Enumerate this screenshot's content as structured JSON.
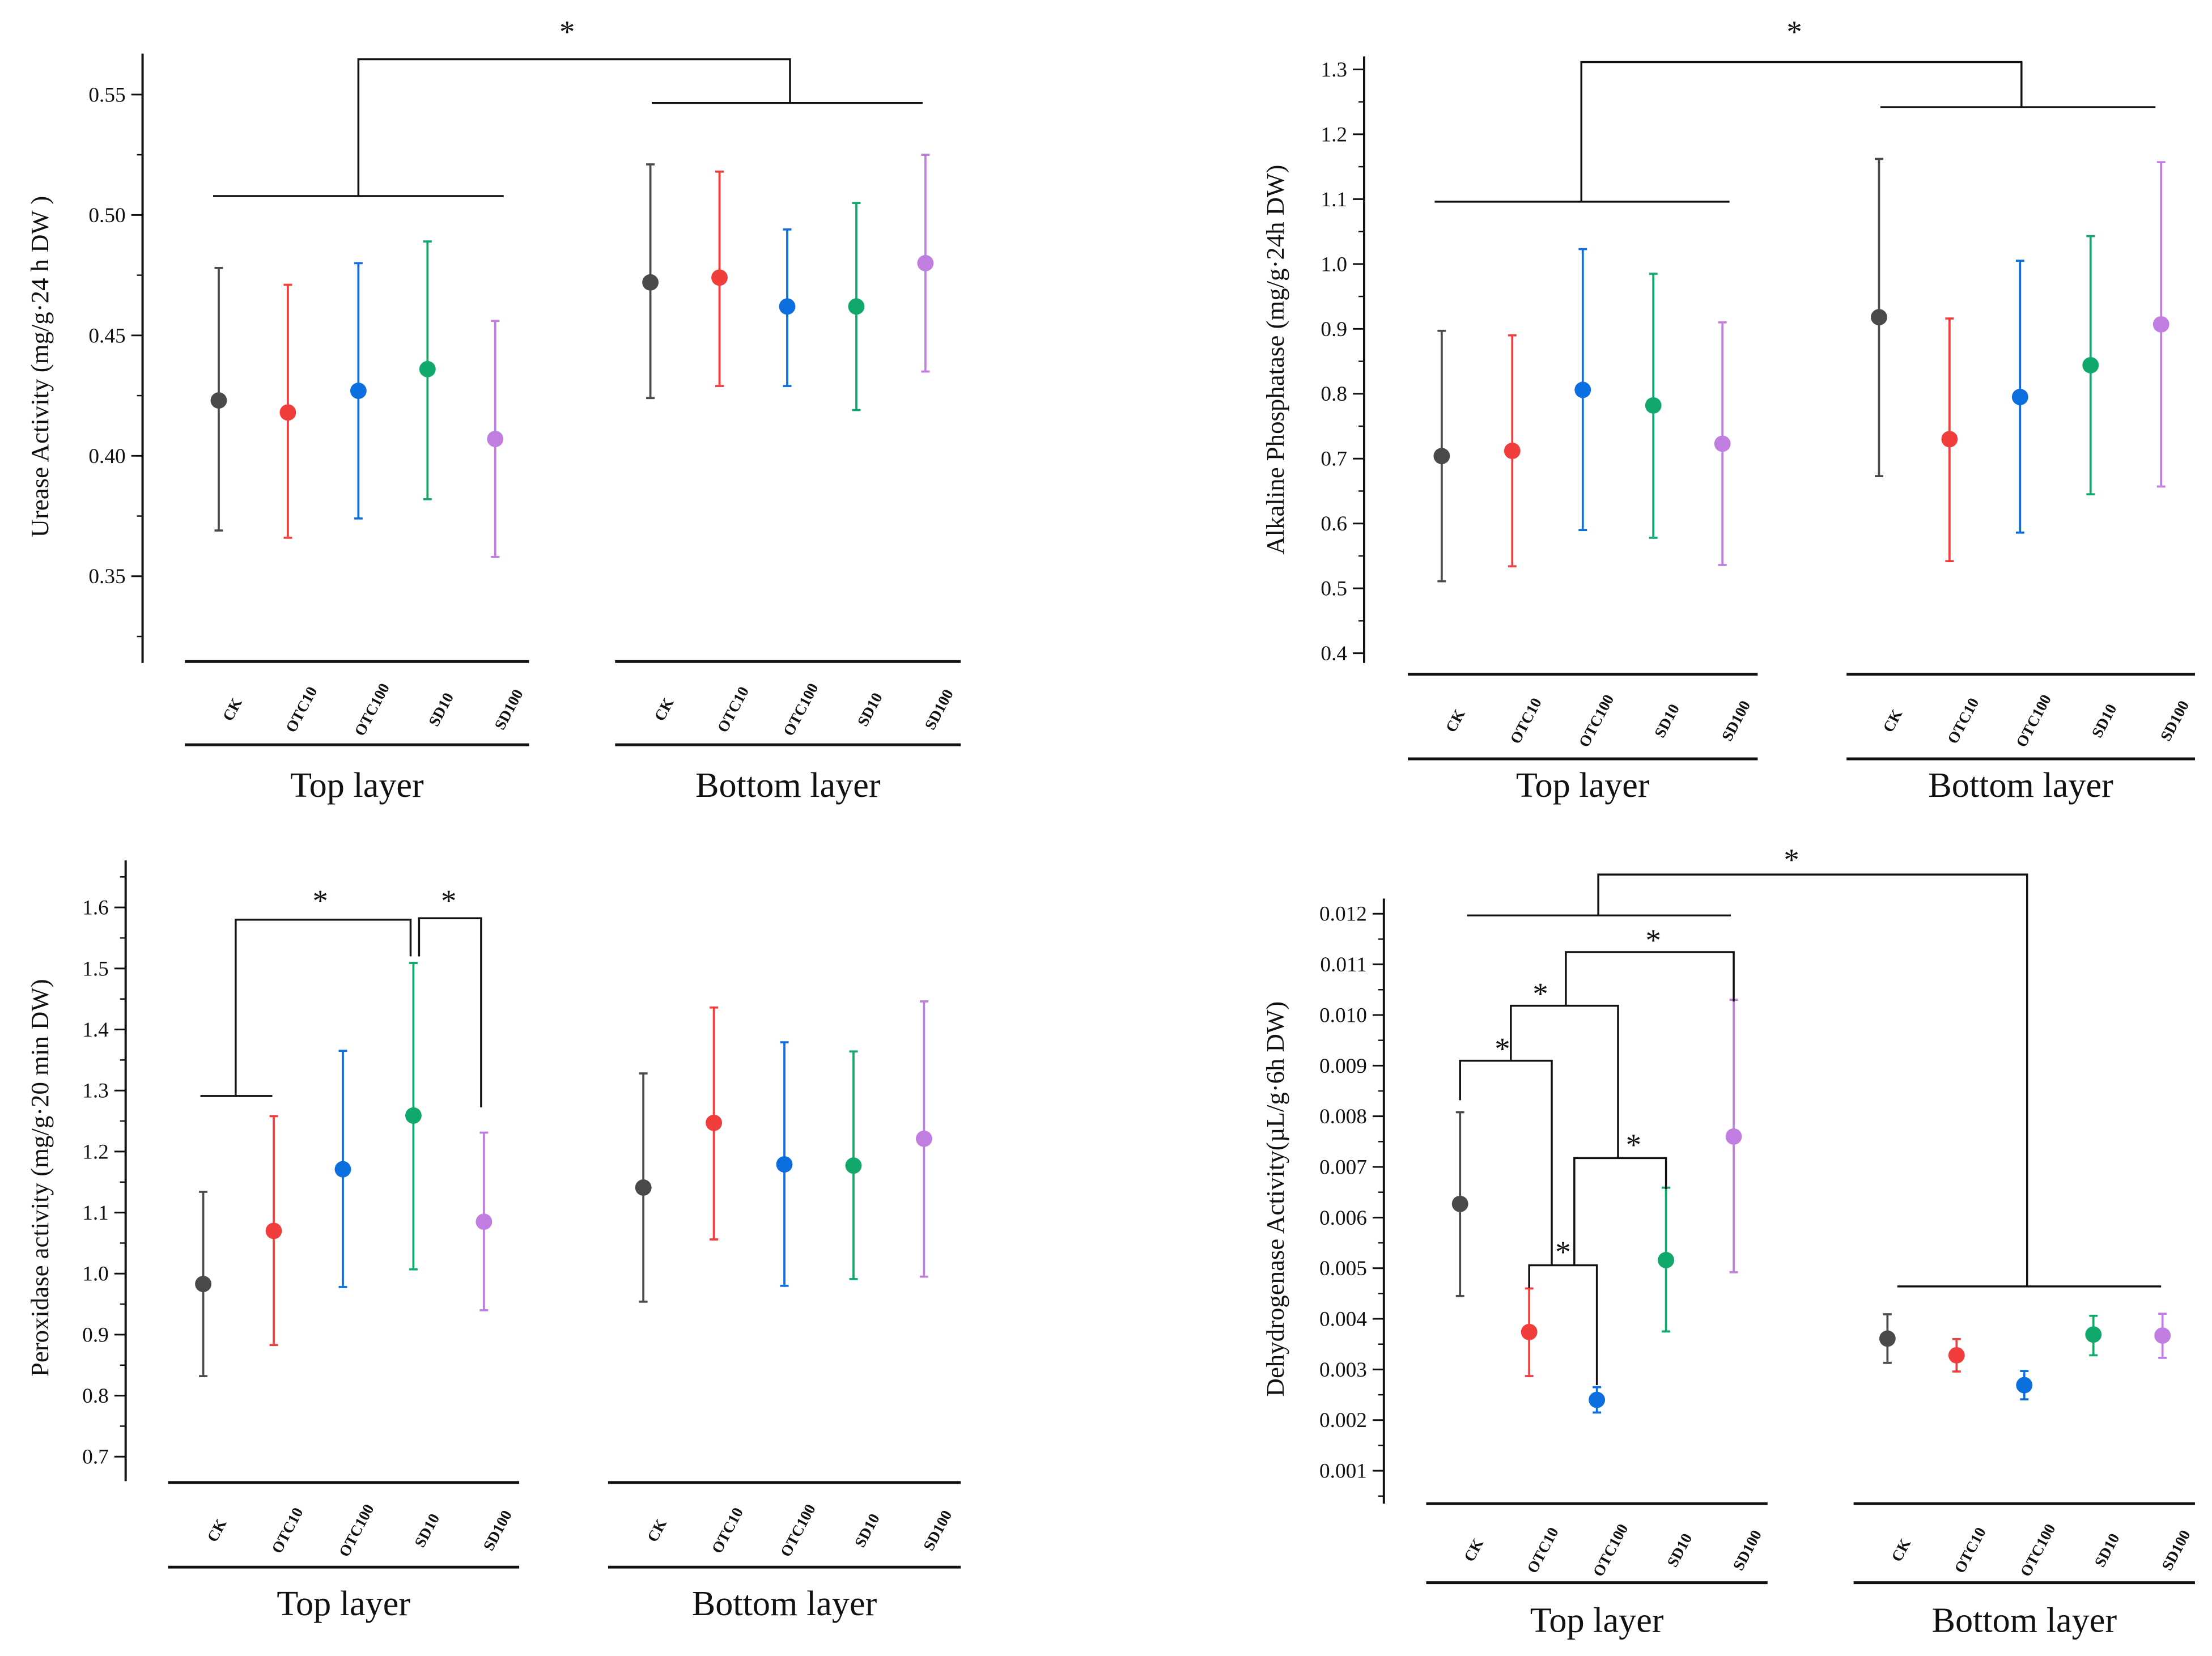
{
  "chart_data": [
    {
      "type": "scatter",
      "subtype": "mean-errorbar",
      "title": "",
      "xlabel": "",
      "ylabel": "Urease Activity (mg/g·24 h DW )",
      "ylim": [
        0.314,
        0.567
      ],
      "yticks": [
        "0.35",
        "0.40",
        "0.45",
        "0.50",
        "0.55"
      ],
      "categories": [
        "CK",
        "OTC10",
        "OTC100",
        "SD10",
        "SD100"
      ],
      "groups": [
        {
          "name": "Top layer",
          "means": [
            0.423,
            0.418,
            0.427,
            0.436,
            0.407
          ],
          "lower": [
            0.369,
            0.366,
            0.374,
            0.382,
            0.358
          ],
          "upper": [
            0.478,
            0.471,
            0.48,
            0.489,
            0.456
          ]
        },
        {
          "name": "Bottom layer",
          "means": [
            0.472,
            0.474,
            0.462,
            0.462,
            0.48
          ],
          "lower": [
            0.424,
            0.429,
            0.429,
            0.419,
            0.435
          ],
          "upper": [
            0.521,
            0.518,
            0.494,
            0.505,
            0.525
          ]
        }
      ],
      "annotations": [
        "*"
      ]
    },
    {
      "type": "scatter",
      "subtype": "mean-errorbar",
      "title": "",
      "xlabel": "",
      "ylabel": "Alkaline Phosphatase (mg/g·24h DW)",
      "ylim": [
        0.385,
        1.32
      ],
      "yticks": [
        "0.4",
        "0.5",
        "0.6",
        "0.7",
        "0.8",
        "0.9",
        "1.0",
        "1.1",
        "1.2",
        "1.3"
      ],
      "categories": [
        "CK",
        "OTC10",
        "OTC100",
        "SD10",
        "SD100"
      ],
      "groups": [
        {
          "name": "Top layer",
          "means": [
            0.704,
            0.712,
            0.806,
            0.782,
            0.723
          ],
          "lower": [
            0.511,
            0.534,
            0.59,
            0.578,
            0.536
          ],
          "upper": [
            0.897,
            0.89,
            1.023,
            0.985,
            0.91
          ]
        },
        {
          "name": "Bottom layer",
          "means": [
            0.918,
            0.73,
            0.795,
            0.844,
            0.907
          ],
          "lower": [
            0.673,
            0.542,
            0.586,
            0.645,
            0.657
          ],
          "upper": [
            1.162,
            0.916,
            1.005,
            1.043,
            1.157
          ]
        }
      ],
      "annotations": [
        "*"
      ]
    },
    {
      "type": "scatter",
      "subtype": "mean-errorbar",
      "title": "",
      "xlabel": "",
      "ylabel": "Peroxidase activity (mg/g·20 min DW)",
      "ylim": [
        0.66,
        1.677
      ],
      "yticks": [
        "0.7",
        "0.8",
        "0.9",
        "1.0",
        "1.1",
        "1.2",
        "1.3",
        "1.4",
        "1.5",
        "1.6"
      ],
      "categories": [
        "CK",
        "OTC10",
        "OTC100",
        "SD10",
        "SD100"
      ],
      "groups": [
        {
          "name": "Top layer",
          "means": [
            0.983,
            1.07,
            1.171,
            1.259,
            1.085
          ],
          "lower": [
            0.832,
            0.883,
            0.978,
            1.007,
            0.94
          ],
          "upper": [
            1.134,
            1.258,
            1.365,
            1.509,
            1.231
          ]
        },
        {
          "name": "Bottom layer",
          "means": [
            1.141,
            1.247,
            1.179,
            1.177,
            1.221
          ],
          "lower": [
            0.954,
            1.056,
            0.98,
            0.991,
            0.995
          ],
          "upper": [
            1.328,
            1.436,
            1.379,
            1.364,
            1.446
          ]
        }
      ],
      "annotations": [
        "*",
        "*"
      ]
    },
    {
      "type": "scatter",
      "subtype": "mean-errorbar",
      "title": "",
      "xlabel": "",
      "ylabel": "Dehydrogenase Activity(µL/g·6h DW)",
      "ylim": [
        0.00035,
        0.0123
      ],
      "yticks": [
        "0.001",
        "0.002",
        "0.003",
        "0.004",
        "0.005",
        "0.006",
        "0.007",
        "0.008",
        "0.009",
        "0.010",
        "0.011",
        "0.012"
      ],
      "categories": [
        "CK",
        "OTC10",
        "OTC100",
        "SD10",
        "SD100"
      ],
      "groups": [
        {
          "name": "Top layer",
          "means": [
            0.00627,
            0.00374,
            0.0024,
            0.00516,
            0.0076
          ],
          "lower": [
            0.00445,
            0.00287,
            0.00215,
            0.00375,
            0.00492
          ],
          "upper": [
            0.00808,
            0.0046,
            0.00265,
            0.00659,
            0.0103
          ]
        },
        {
          "name": "Bottom layer",
          "means": [
            0.00361,
            0.00328,
            0.00269,
            0.00369,
            0.00367
          ],
          "lower": [
            0.00313,
            0.00296,
            0.00241,
            0.00328,
            0.00323
          ],
          "upper": [
            0.00409,
            0.0036,
            0.00297,
            0.00406,
            0.0041
          ]
        }
      ],
      "annotations": [
        "*",
        "*",
        "*",
        "*",
        "*",
        "*"
      ]
    }
  ],
  "colors": {
    "CK": "#4a4a4a",
    "OTC10": "#f23d3d",
    "OTC100": "#0b6fe0",
    "SD10": "#10a86b",
    "SD100": "#c07fe0"
  }
}
